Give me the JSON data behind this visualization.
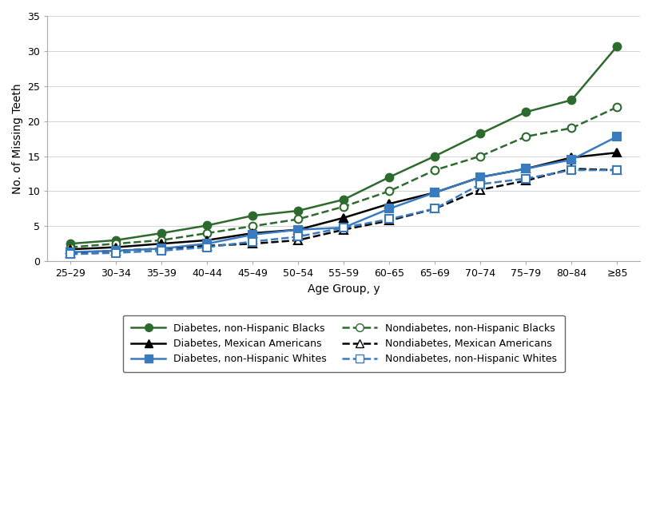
{
  "age_groups": [
    "25–29",
    "30–34",
    "35–39",
    "40–44",
    "45–49",
    "50–54",
    "55–59",
    "60–65",
    "65–69",
    "70–74",
    "75–79",
    "80–84",
    "≥85"
  ],
  "series": {
    "diabetes_blacks": {
      "values": [
        2.5,
        3.0,
        4.0,
        5.1,
        6.5,
        7.2,
        8.8,
        12.0,
        15.0,
        18.2,
        21.3,
        23.0,
        30.7
      ],
      "color": "#2d6a2d",
      "linestyle": "solid",
      "marker": "o",
      "marker_filled": true,
      "linewidth": 1.8,
      "label": "Diabetes, non-Hispanic Blacks"
    },
    "nondiabetes_blacks": {
      "values": [
        2.0,
        2.5,
        3.0,
        4.0,
        5.0,
        6.0,
        7.8,
        10.0,
        13.0,
        15.0,
        17.8,
        19.0,
        22.0
      ],
      "color": "#2d6a2d",
      "linestyle": "dashed",
      "marker": "o",
      "marker_filled": false,
      "linewidth": 1.8,
      "label": "Nondiabetes, non-Hispanic Blacks"
    },
    "diabetes_mexican": {
      "values": [
        1.7,
        2.0,
        2.5,
        3.0,
        4.0,
        4.5,
        6.2,
        8.2,
        9.8,
        12.0,
        13.2,
        14.8,
        15.5
      ],
      "color": "#000000",
      "linestyle": "solid",
      "marker": "^",
      "marker_filled": true,
      "linewidth": 1.8,
      "label": "Diabetes, Mexican Americans"
    },
    "nondiabetes_mexican": {
      "values": [
        1.2,
        1.5,
        1.8,
        2.2,
        2.5,
        3.0,
        4.5,
        5.8,
        7.5,
        10.2,
        11.5,
        13.2,
        13.0
      ],
      "color": "#000000",
      "linestyle": "dashed",
      "marker": "^",
      "marker_filled": false,
      "linewidth": 1.8,
      "label": "Nondiabetes, Mexican Americans"
    },
    "diabetes_whites": {
      "values": [
        1.3,
        1.5,
        1.8,
        2.5,
        3.8,
        4.5,
        4.8,
        7.5,
        9.8,
        12.0,
        13.2,
        14.5,
        17.8
      ],
      "color": "#3a7abf",
      "linestyle": "solid",
      "marker": "s",
      "marker_filled": true,
      "linewidth": 1.8,
      "label": "Diabetes, non-Hispanic Whites"
    },
    "nondiabetes_whites": {
      "values": [
        1.0,
        1.2,
        1.5,
        2.0,
        2.8,
        3.5,
        4.8,
        6.0,
        7.5,
        11.0,
        11.8,
        13.0,
        13.0
      ],
      "color": "#3a7abf",
      "linestyle": "dashed",
      "marker": "s",
      "marker_filled": false,
      "linewidth": 1.8,
      "label": "Nondiabetes, non-Hispanic Whites"
    }
  },
  "ylim": [
    0,
    35
  ],
  "yticks": [
    0,
    5,
    10,
    15,
    20,
    25,
    30,
    35
  ],
  "ylabel": "No. of Missing Teeth",
  "xlabel": "Age Group, y",
  "axis_fontsize": 10,
  "tick_fontsize": 9,
  "legend_fontsize": 9
}
